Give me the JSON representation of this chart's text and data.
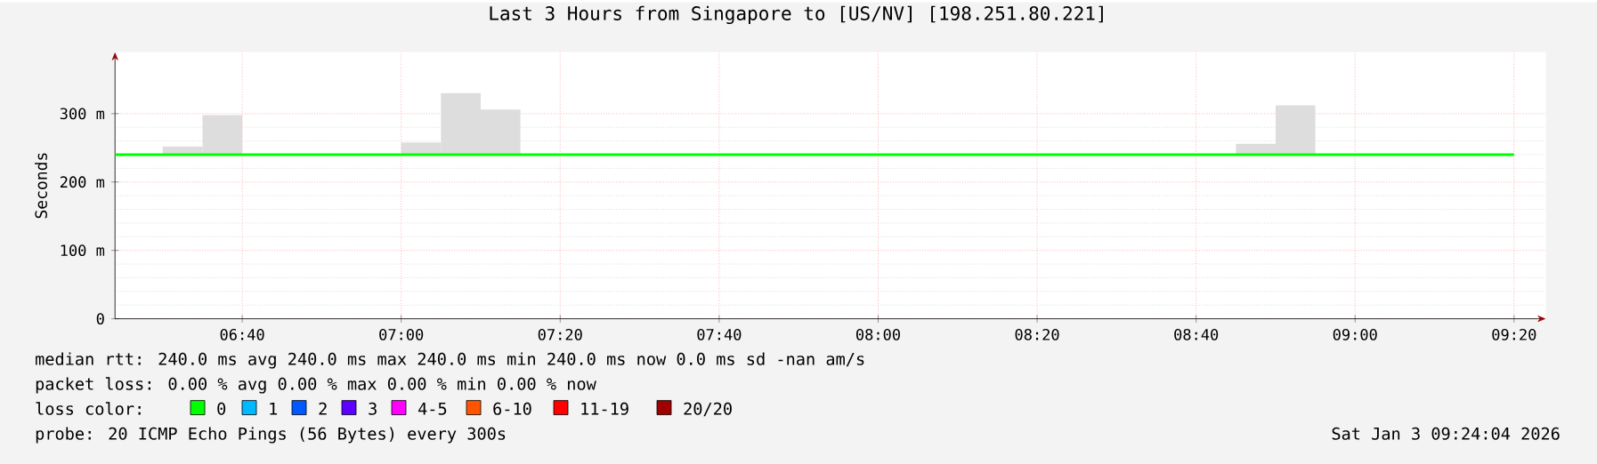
{
  "chart_data": {
    "type": "line",
    "title": "Last 3 Hours from Singapore to [US/NV] [198.251.80.221]",
    "ylabel": "Seconds",
    "xlim": [
      6.4,
      9.4
    ],
    "xticks": [
      {
        "value": 6.6667,
        "label": "06:40"
      },
      {
        "value": 7,
        "label": "07:00"
      },
      {
        "value": 7.3333,
        "label": "07:20"
      },
      {
        "value": 7.6667,
        "label": "07:40"
      },
      {
        "value": 8,
        "label": "08:00"
      },
      {
        "value": 8.3333,
        "label": "08:20"
      },
      {
        "value": 8.6667,
        "label": "08:40"
      },
      {
        "value": 9,
        "label": "09:00"
      },
      {
        "value": 9.3333,
        "label": "09:20"
      }
    ],
    "ylim": [
      0,
      390
    ],
    "yticks": [
      {
        "value": 0,
        "label": "0"
      },
      {
        "value": 100,
        "label": "100 m"
      },
      {
        "value": 200,
        "label": "200 m"
      },
      {
        "value": 300,
        "label": "300 m"
      }
    ],
    "grid": true,
    "series": [
      {
        "type": "bar",
        "color": "#dddddd",
        "x": [
          6.5417,
          6.625,
          7.0417,
          7.125,
          7.2083,
          8.7917,
          8.875
        ],
        "base": [
          240,
          240,
          240,
          240,
          240,
          240,
          240
        ],
        "values": [
          12,
          58,
          18,
          90,
          66,
          16,
          72
        ]
      },
      {
        "color": "#00ff00",
        "x": [
          6.4,
          9.3333
        ],
        "values": [
          240,
          240
        ]
      }
    ],
    "annotations": [
      "median rtt: 240.0 ms avg 240.0 ms max 240.0 ms min 240.0 ms now 0.0 ms sd -nan am/s",
      "packet loss: 0.00 % avg 0.00 % max 0.00 % min 0.00 % now",
      "loss color:",
      "0",
      "1",
      "2",
      "3",
      "4-5",
      "6-10",
      "11-19",
      "20/20",
      "probe: 20 ICMP Echo Pings (56 Bytes) every 300s",
      "Sat Jan 3 09:24:04 2026"
    ]
  }
}
